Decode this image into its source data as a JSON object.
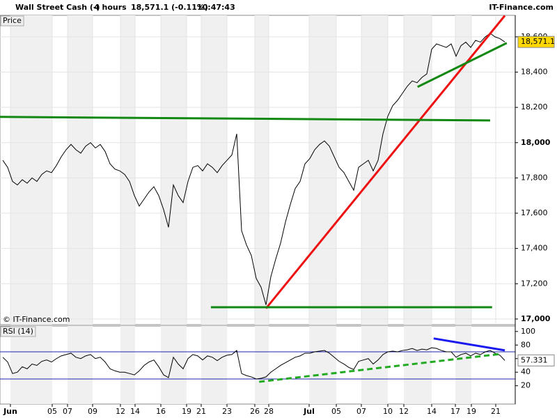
{
  "header": {
    "instrument": "Wall Street Cash (-)",
    "timeframe": "4 hours",
    "quote": "18,571.1 (-0.11%)",
    "time": "10:47:43",
    "brand": "IT-Finance.com"
  },
  "chart_data": [
    {
      "type": "line",
      "title": "Price",
      "credit": "© IT-Finance.com",
      "x": [
        0,
        1,
        2,
        3,
        4,
        5,
        6,
        7,
        8,
        9,
        10,
        11,
        12,
        13,
        14,
        15,
        16,
        17,
        18,
        19,
        20,
        21,
        22,
        23,
        24,
        25,
        26,
        27,
        28,
        29,
        30,
        31,
        32,
        33,
        34,
        35,
        36,
        37,
        38,
        39,
        40,
        41,
        42,
        43,
        44,
        45,
        46,
        47,
        48,
        49,
        50,
        51,
        52,
        53,
        54,
        55,
        56,
        57,
        58,
        59,
        60,
        61,
        62,
        63,
        64,
        65,
        66,
        67,
        68,
        69,
        70,
        71,
        72,
        73,
        74,
        75,
        76,
        77,
        78,
        79,
        80,
        81,
        82,
        83,
        84,
        85,
        86,
        87,
        88,
        89,
        90,
        91,
        92,
        93,
        94,
        95,
        96,
        97,
        98,
        99,
        100,
        101,
        102,
        103
      ],
      "series": [
        {
          "name": "Wall Street Cash",
          "color": "#000000",
          "values": [
            17900,
            17860,
            17780,
            17760,
            17790,
            17770,
            17800,
            17780,
            17820,
            17840,
            17830,
            17870,
            17920,
            17960,
            17990,
            17960,
            17940,
            17980,
            18000,
            17970,
            17990,
            17950,
            17880,
            17850,
            17840,
            17820,
            17780,
            17700,
            17640,
            17680,
            17720,
            17750,
            17700,
            17620,
            17520,
            17760,
            17700,
            17660,
            17780,
            17860,
            17870,
            17840,
            17880,
            17860,
            17830,
            17870,
            17900,
            17930,
            18050,
            17500,
            17420,
            17360,
            17230,
            17180,
            17080,
            17240,
            17340,
            17430,
            17550,
            17650,
            17740,
            17780,
            17880,
            17910,
            17960,
            17990,
            18010,
            17980,
            17920,
            17860,
            17830,
            17780,
            17730,
            17860,
            17880,
            17900,
            17840,
            17900,
            18050,
            18150,
            18210,
            18240,
            18280,
            18320,
            18350,
            18340,
            18370,
            18390,
            18530,
            18560,
            18550,
            18540,
            18560,
            18490,
            18550,
            18570,
            18540,
            18580,
            18570,
            18600,
            18620,
            18600,
            18590,
            18571.1
          ]
        }
      ],
      "last_label": "18,571.1",
      "xlim": [
        -0.57,
        105.14
      ],
      "xticks": [
        {
          "value": 1.57,
          "label": "Jun"
        },
        {
          "value": 10.14,
          "label": "05"
        },
        {
          "value": 13.29,
          "label": "07"
        },
        {
          "value": 18.43,
          "label": "09"
        },
        {
          "value": 24.14,
          "label": "12"
        },
        {
          "value": 27.14,
          "label": "14"
        },
        {
          "value": 32.43,
          "label": "16"
        },
        {
          "value": 37.71,
          "label": "19"
        },
        {
          "value": 40.71,
          "label": "21"
        },
        {
          "value": 46,
          "label": "23"
        },
        {
          "value": 51.71,
          "label": "26"
        },
        {
          "value": 54.57,
          "label": "28"
        },
        {
          "value": 62.86,
          "label": "Jul"
        },
        {
          "value": 68.43,
          "label": "05"
        },
        {
          "value": 73.57,
          "label": "07"
        },
        {
          "value": 79,
          "label": "10"
        },
        {
          "value": 82.29,
          "label": "12"
        },
        {
          "value": 88,
          "label": "14"
        },
        {
          "value": 92.86,
          "label": "17"
        },
        {
          "value": 96.14,
          "label": "19"
        },
        {
          "value": 101.14,
          "label": "21"
        }
      ],
      "ylim": [
        16968,
        18722
      ],
      "yticks": [
        {
          "value": 17000,
          "label": "17,000"
        },
        {
          "value": 17200,
          "label": "17,200"
        },
        {
          "value": 17400,
          "label": "17,400"
        },
        {
          "value": 17600,
          "label": "17,600"
        },
        {
          "value": 17800,
          "label": "17,800"
        },
        {
          "value": 18000,
          "label": "18,000"
        },
        {
          "value": 18200,
          "label": "18,200"
        },
        {
          "value": 18400,
          "label": "18,400"
        },
        {
          "value": 18600,
          "label": "18,600"
        }
      ],
      "grid": true,
      "annotations": [
        {
          "color": "#ee1111",
          "x": [
            54,
            103
          ],
          "values": [
            17060,
            18720
          ]
        },
        {
          "color": "#118811",
          "x": [
            -0.6,
            100
          ],
          "values": [
            18146,
            18126
          ]
        },
        {
          "color": "#118811",
          "x": [
            42.7,
            100.4
          ],
          "values": [
            17067,
            17067
          ]
        },
        {
          "color": "#118811",
          "x": [
            85.1,
            103.4
          ],
          "values": [
            18316,
            18565
          ]
        }
      ]
    },
    {
      "type": "line",
      "title": "RSI (14)",
      "x": [
        0,
        1,
        2,
        3,
        4,
        5,
        6,
        7,
        8,
        9,
        10,
        11,
        12,
        13,
        14,
        15,
        16,
        17,
        18,
        19,
        20,
        21,
        22,
        23,
        24,
        25,
        26,
        27,
        28,
        29,
        30,
        31,
        32,
        33,
        34,
        35,
        36,
        37,
        38,
        39,
        40,
        41,
        42,
        43,
        44,
        45,
        46,
        47,
        48,
        49,
        50,
        51,
        52,
        53,
        54,
        55,
        56,
        57,
        58,
        59,
        60,
        61,
        62,
        63,
        64,
        65,
        66,
        67,
        68,
        69,
        70,
        71,
        72,
        73,
        74,
        75,
        76,
        77,
        78,
        79,
        80,
        81,
        82,
        83,
        84,
        85,
        86,
        87,
        88,
        89,
        90,
        91,
        92,
        93,
        94,
        95,
        96,
        97,
        98,
        99,
        100,
        101,
        102,
        103
      ],
      "series": [
        {
          "name": "RSI",
          "color": "#000000",
          "values": [
            62,
            55,
            38,
            40,
            48,
            45,
            52,
            50,
            56,
            58,
            55,
            60,
            64,
            66,
            68,
            62,
            60,
            64,
            66,
            60,
            62,
            55,
            45,
            42,
            40,
            40,
            38,
            36,
            42,
            50,
            55,
            58,
            48,
            36,
            32,
            62,
            52,
            45,
            60,
            66,
            64,
            58,
            64,
            62,
            57,
            62,
            65,
            66,
            72,
            38,
            35,
            33,
            30,
            31,
            33,
            40,
            45,
            50,
            54,
            58,
            62,
            64,
            68,
            68,
            70,
            71,
            72,
            68,
            62,
            56,
            52,
            47,
            44,
            56,
            58,
            60,
            52,
            58,
            66,
            70,
            71,
            70,
            72,
            73,
            75,
            72,
            74,
            73,
            76,
            75,
            72,
            70,
            70,
            62,
            66,
            68,
            64,
            68,
            66,
            70,
            72,
            68,
            65,
            57.331
          ]
        }
      ],
      "last_label": "57.331",
      "xlim": [
        -0.57,
        105.14
      ],
      "ylim": [
        -7,
        108
      ],
      "yticks": [
        20,
        40,
        60,
        80,
        100
      ],
      "levels": [
        70,
        30
      ],
      "level_color": "#2222aa",
      "annotations": [
        {
          "color": "#1a1aee",
          "x": [
            88.4,
            103
          ],
          "values": [
            89.7,
            72.2
          ]
        },
        {
          "color": "#22aa22",
          "dashed": true,
          "x": [
            52.6,
            102.3
          ],
          "values": [
            25.8,
            67
          ]
        }
      ]
    }
  ]
}
